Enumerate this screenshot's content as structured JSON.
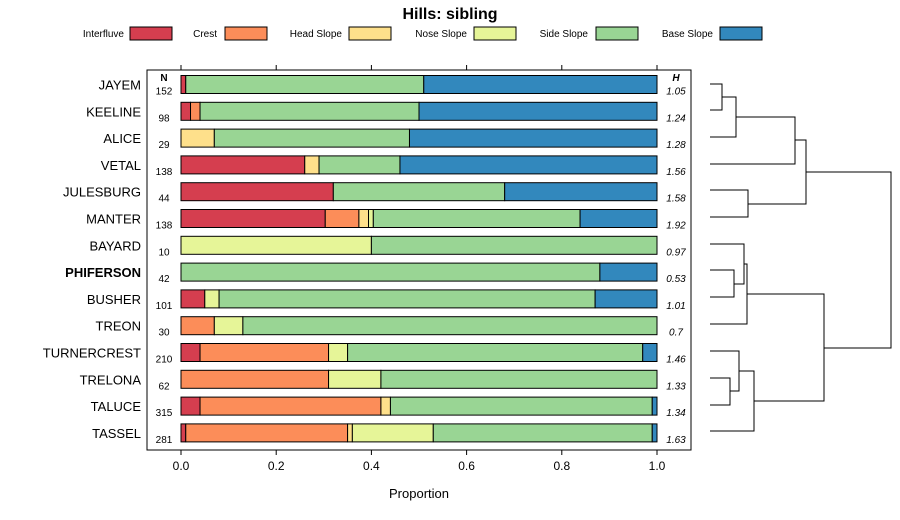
{
  "chart_data": {
    "type": "bar",
    "stacked": true,
    "orientation": "horizontal",
    "title": "Hills: sibling",
    "xlabel": "Proportion",
    "xlim": [
      0,
      1
    ],
    "x_ticks": [
      "0.0",
      "0.2",
      "0.4",
      "0.6",
      "0.8",
      "1.0"
    ],
    "n_header": "N",
    "h_header": "H",
    "highlight": "PHIFERSON",
    "legend_position": "top",
    "categories": [
      "JAYEM",
      "KEELINE",
      "ALICE",
      "VETAL",
      "JULESBURG",
      "MANTER",
      "BAYARD",
      "PHIFERSON",
      "BUSHER",
      "TREON",
      "TURNERCREST",
      "TRELONA",
      "TALUCE",
      "TASSEL"
    ],
    "n": [
      "152",
      "98",
      "29",
      "138",
      "44",
      "138",
      "10",
      "42",
      "101",
      "30",
      "210",
      "62",
      "315",
      "281"
    ],
    "h": [
      "1.05",
      "1.24",
      "1.28",
      "1.56",
      "1.58",
      "1.92",
      "0.97",
      "0.53",
      "1.01",
      "0.7",
      "1.46",
      "1.33",
      "1.34",
      "1.63"
    ],
    "series": [
      {
        "name": "Interfluve",
        "color": "#D53E4F",
        "values": [
          0.01,
          0.02,
          0,
          0.26,
          0.32,
          0.3,
          0,
          0,
          0.05,
          0,
          0.04,
          0,
          0.04,
          0.01
        ]
      },
      {
        "name": "Crest",
        "color": "#FC8D59",
        "values": [
          0,
          0.02,
          0,
          0,
          0,
          0.07,
          0,
          0,
          0,
          0.07,
          0.27,
          0.31,
          0.38,
          0.34
        ]
      },
      {
        "name": "Head Slope",
        "color": "#FEE08B",
        "values": [
          0,
          0,
          0.07,
          0.03,
          0,
          0.02,
          0,
          0,
          0,
          0,
          0,
          0,
          0.02,
          0.01
        ]
      },
      {
        "name": "Nose Slope",
        "color": "#E6F598",
        "values": [
          0,
          0,
          0,
          0,
          0,
          0.01,
          0.4,
          0,
          0.03,
          0.06,
          0.04,
          0.11,
          0,
          0.17
        ]
      },
      {
        "name": "Side Slope",
        "color": "#99D594",
        "values": [
          0.5,
          0.46,
          0.41,
          0.17,
          0.36,
          0.43,
          0.6,
          0.88,
          0.79,
          0.87,
          0.62,
          0.58,
          0.55,
          0.46
        ]
      },
      {
        "name": "Base Slope",
        "color": "#3288BD",
        "values": [
          0.49,
          0.5,
          0.52,
          0.54,
          0.32,
          0.16,
          0,
          0.12,
          0.13,
          0,
          0.03,
          0,
          0.01,
          0.01
        ]
      }
    ]
  }
}
